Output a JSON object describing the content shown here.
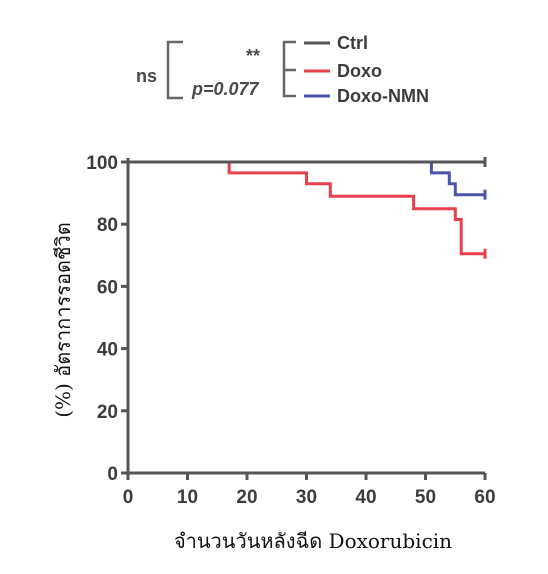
{
  "chart_data": {
    "type": "line",
    "subtype": "kaplan-meier-step",
    "xlabel": "จำนวนวันหลังฉีด Doxorubicin",
    "ylabel": "(%) อัตราการรอดชีวิต",
    "xlim": [
      0,
      60
    ],
    "ylim": [
      0,
      100
    ],
    "xticks": [
      0,
      10,
      20,
      30,
      40,
      50,
      60
    ],
    "yticks": [
      0,
      20,
      40,
      60,
      80,
      100
    ],
    "grid": false,
    "legend_position": "top-right",
    "series": [
      {
        "name": "Ctrl",
        "color": "#555555",
        "points": [
          [
            0,
            100
          ],
          [
            60,
            100
          ]
        ]
      },
      {
        "name": "Doxo",
        "color": "#e8404a",
        "points": [
          [
            0,
            100
          ],
          [
            17,
            100
          ],
          [
            17,
            96.5
          ],
          [
            30,
            96.5
          ],
          [
            30,
            93
          ],
          [
            34,
            93
          ],
          [
            34,
            89
          ],
          [
            48,
            89
          ],
          [
            48,
            85
          ],
          [
            55,
            85
          ],
          [
            55,
            81.5
          ],
          [
            56,
            81.5
          ],
          [
            56,
            70.5
          ],
          [
            60,
            70.5
          ]
        ]
      },
      {
        "name": "Doxo-NMN",
        "color": "#4a55a8",
        "points": [
          [
            0,
            100
          ],
          [
            51,
            100
          ],
          [
            51,
            96.5
          ],
          [
            54,
            96.5
          ],
          [
            54,
            93
          ],
          [
            55,
            93
          ],
          [
            55,
            89.5
          ],
          [
            60,
            89.5
          ]
        ]
      }
    ],
    "annotations": {
      "outer_bracket_label": "ns",
      "inner_bracket_top_label": "**",
      "inner_bracket_bottom_label": "p=0.077"
    }
  }
}
